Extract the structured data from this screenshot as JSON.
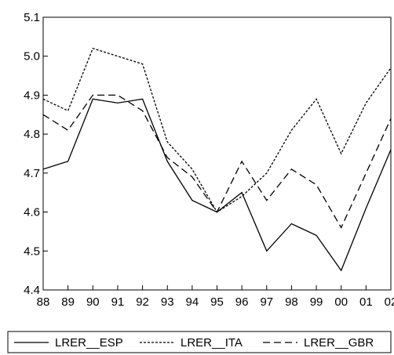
{
  "chart_data": {
    "type": "line",
    "title": "",
    "xlabel": "",
    "ylabel": "",
    "categories": [
      "88",
      "89",
      "90",
      "91",
      "92",
      "93",
      "94",
      "95",
      "96",
      "97",
      "98",
      "99",
      "00",
      "01",
      "02"
    ],
    "yticks": [
      "4.4",
      "4.5",
      "4.6",
      "4.7",
      "4.8",
      "4.9",
      "5.0",
      "5.1"
    ],
    "ylim": [
      4.4,
      5.1
    ],
    "grid": false,
    "legend_position": "bottom",
    "series": [
      {
        "name": "LRER__ESP",
        "style": "solid",
        "color": "#000000",
        "values": [
          4.71,
          4.73,
          4.89,
          4.88,
          4.89,
          4.73,
          4.63,
          4.6,
          4.65,
          4.5,
          4.57,
          4.54,
          4.45,
          4.61,
          4.76
        ]
      },
      {
        "name": "LRER__ITA",
        "style": "dotted-dash",
        "color": "#000000",
        "values": [
          4.89,
          4.86,
          5.02,
          5.0,
          4.98,
          4.78,
          4.71,
          4.6,
          4.64,
          4.7,
          4.81,
          4.89,
          4.75,
          4.88,
          4.97
        ]
      },
      {
        "name": "LRER__GBR",
        "style": "dashed",
        "color": "#000000",
        "values": [
          4.85,
          4.81,
          4.9,
          4.9,
          4.86,
          4.74,
          4.69,
          4.6,
          4.73,
          4.63,
          4.71,
          4.67,
          4.56,
          4.7,
          4.84
        ]
      }
    ]
  }
}
